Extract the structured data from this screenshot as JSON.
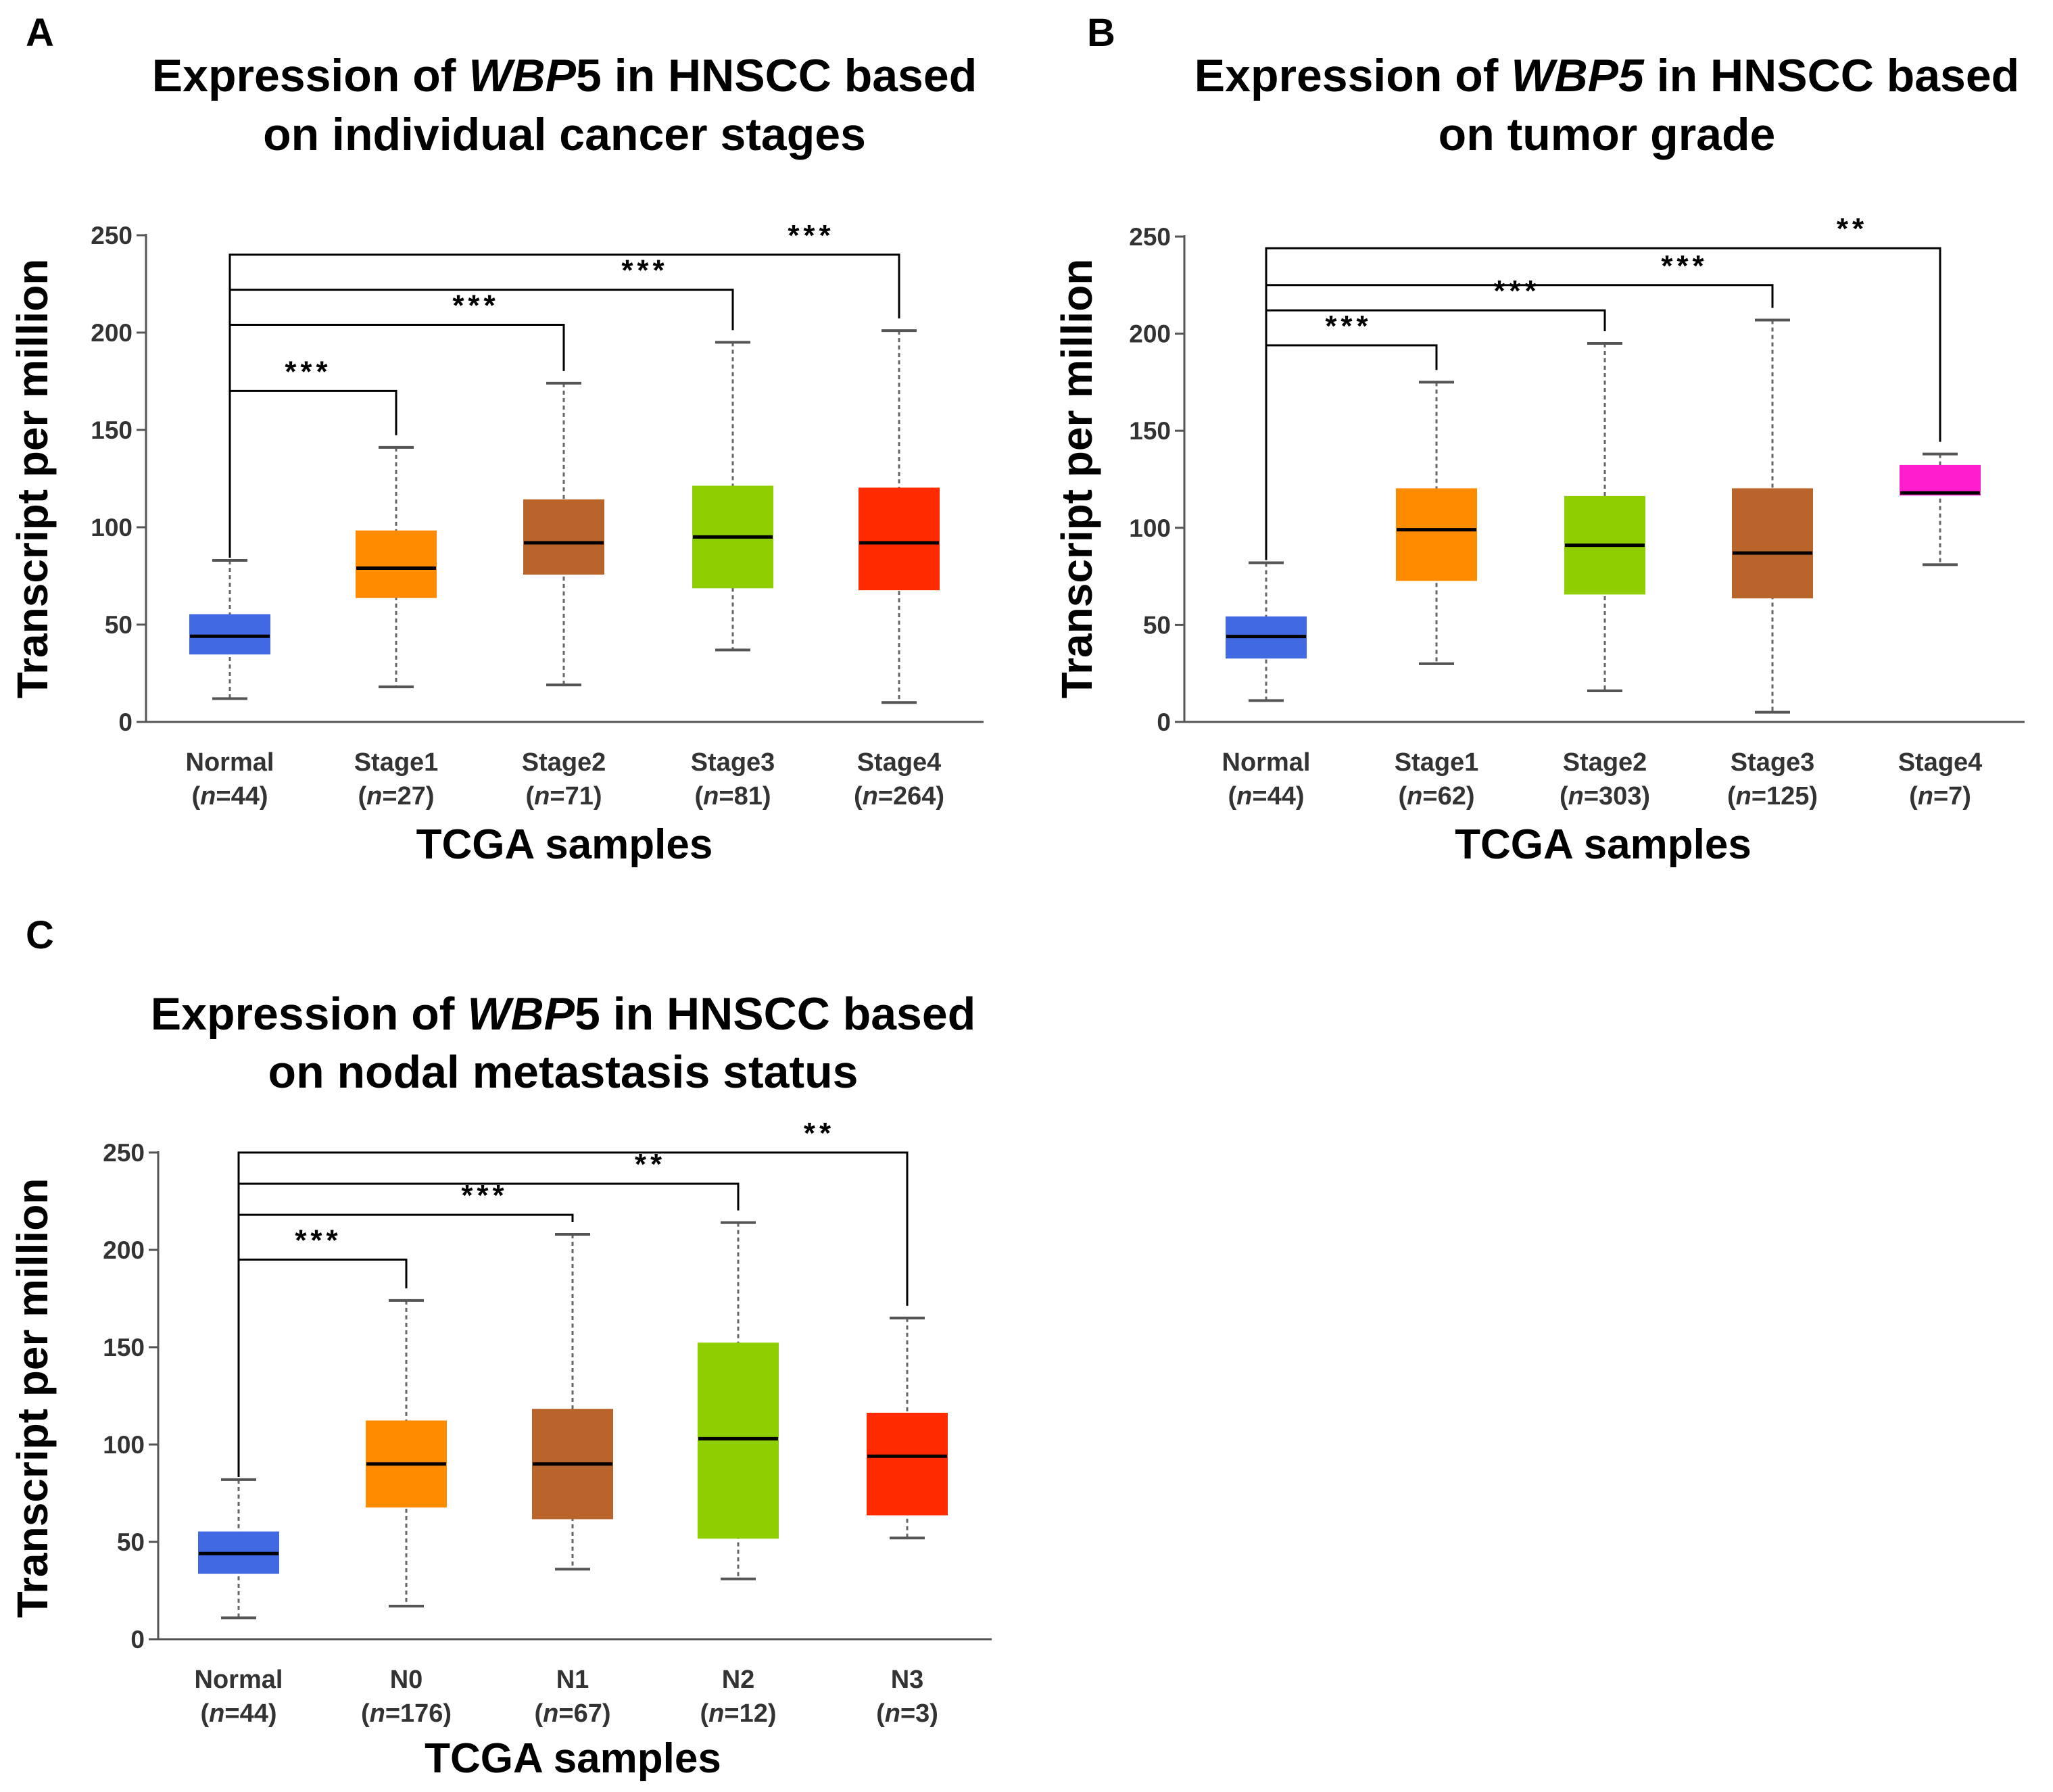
{
  "chart_data": [
    {
      "type": "box",
      "panel": "A",
      "title_parts": [
        "Expression of ",
        "WBP",
        "5 in HNSCC based"
      ],
      "title_line2": "on individual  cancer stages",
      "ylabel": "Transcript per million",
      "xlabel": "TCGA samples",
      "ylim": [
        0,
        250
      ],
      "yticks": [
        0,
        50,
        100,
        150,
        200,
        250
      ],
      "groups": [
        {
          "name": "Normal",
          "n": "44",
          "color": "#4169e1",
          "min": 12,
          "q1": 35,
          "median": 44,
          "q3": 55,
          "max": 83
        },
        {
          "name": "Stage1",
          "n": "27",
          "color": "#ff8c00",
          "min": 18,
          "q1": 64,
          "median": 79,
          "q3": 98,
          "max": 141
        },
        {
          "name": "Stage2",
          "n": "71",
          "color": "#b8642a",
          "min": 19,
          "q1": 76,
          "median": 92,
          "q3": 114,
          "max": 174
        },
        {
          "name": "Stage3",
          "n": "81",
          "color": "#8fce00",
          "min": 37,
          "q1": 69,
          "median": 95,
          "q3": 121,
          "max": 195
        },
        {
          "name": "Stage4",
          "n": "264",
          "color": "#ff2a00",
          "min": 10,
          "q1": 68,
          "median": 92,
          "q3": 120,
          "max": 201
        }
      ],
      "comparisons": [
        {
          "target": 1,
          "label": "***",
          "level": 170
        },
        {
          "target": 2,
          "label": "***",
          "level": 204
        },
        {
          "target": 3,
          "label": "***",
          "level": 222
        },
        {
          "target": 4,
          "label": "***",
          "level": 240
        }
      ]
    },
    {
      "type": "box",
      "panel": "B",
      "title_parts": [
        "Expression of ",
        "WBP5",
        " in HNSCC based"
      ],
      "title_line2": "on tumor grade",
      "ylabel": "Transcript per million",
      "xlabel": "TCGA samples",
      "ylim": [
        0,
        250
      ],
      "yticks": [
        0,
        50,
        100,
        150,
        200,
        250
      ],
      "groups": [
        {
          "name": "Normal",
          "n": "44",
          "color": "#4169e1",
          "min": 11,
          "q1": 33,
          "median": 44,
          "q3": 54,
          "max": 82
        },
        {
          "name": "Stage1",
          "n": "62",
          "color": "#ff8c00",
          "min": 30,
          "q1": 73,
          "median": 99,
          "q3": 120,
          "max": 175
        },
        {
          "name": "Stage2",
          "n": "303",
          "color": "#8fce00",
          "min": 16,
          "q1": 66,
          "median": 91,
          "q3": 116,
          "max": 195
        },
        {
          "name": "Stage3",
          "n": "125",
          "color": "#b8642a",
          "min": 5,
          "q1": 64,
          "median": 87,
          "q3": 120,
          "max": 207
        },
        {
          "name": "Stage4",
          "n": "7",
          "color": "#ff1dce",
          "min": 81,
          "q1": 117,
          "median": 118,
          "q3": 132,
          "max": 138
        }
      ],
      "comparisons": [
        {
          "target": 1,
          "label": "***",
          "level": 194
        },
        {
          "target": 2,
          "label": "***",
          "level": 212
        },
        {
          "target": 3,
          "label": "***",
          "level": 225
        },
        {
          "target": 4,
          "label": "**",
          "level": 244
        }
      ]
    },
    {
      "type": "box",
      "panel": "C",
      "title_parts": [
        "Expression of ",
        "WBP",
        "5 in HNSCC based"
      ],
      "title_line2": "on nodal metastasis status",
      "ylabel": "Transcript per million",
      "xlabel": "TCGA samples",
      "ylim": [
        0,
        250
      ],
      "yticks": [
        0,
        50,
        100,
        150,
        200,
        250
      ],
      "groups": [
        {
          "name": "Normal",
          "n": "44",
          "color": "#4169e1",
          "min": 11,
          "q1": 34,
          "median": 44,
          "q3": 55,
          "max": 82
        },
        {
          "name": "N0",
          "n": "176",
          "color": "#ff8c00",
          "min": 17,
          "q1": 68,
          "median": 90,
          "q3": 112,
          "max": 174
        },
        {
          "name": "N1",
          "n": "67",
          "color": "#b8642a",
          "min": 36,
          "q1": 62,
          "median": 90,
          "q3": 118,
          "max": 208
        },
        {
          "name": "N2",
          "n": "12",
          "color": "#8fce00",
          "min": 31,
          "q1": 52,
          "median": 103,
          "q3": 152,
          "max": 214
        },
        {
          "name": "N3",
          "n": "3",
          "color": "#ff2a00",
          "min": 52,
          "q1": 64,
          "median": 94,
          "q3": 116,
          "max": 165
        }
      ],
      "comparisons": [
        {
          "target": 1,
          "label": "***",
          "level": 195
        },
        {
          "target": 2,
          "label": "***",
          "level": 218
        },
        {
          "target": 3,
          "label": "**",
          "level": 234
        },
        {
          "target": 4,
          "label": "**",
          "level": 250
        }
      ]
    }
  ]
}
